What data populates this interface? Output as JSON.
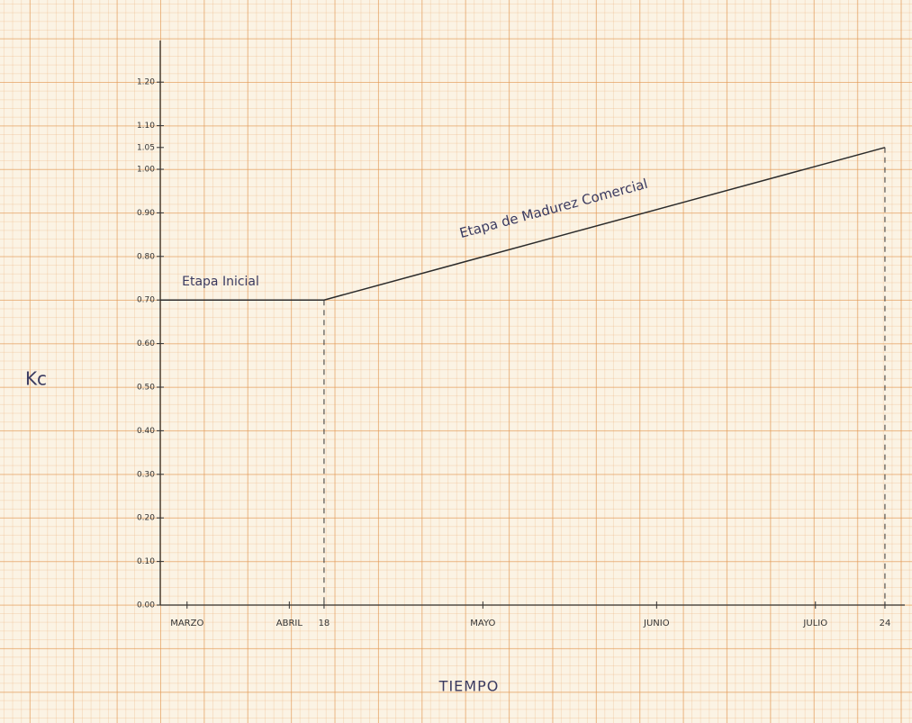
{
  "chart_data": {
    "type": "line",
    "y_label": "Kc",
    "x_label": "TIEMPO",
    "x": [
      0,
      33,
      146
    ],
    "series": [
      {
        "color": "#2b2b2b",
        "values": [
          0.7,
          0.7,
          1.05
        ]
      }
    ],
    "annotations": [
      "Etapa Inicial",
      "Etapa de Madurez Comercial"
    ],
    "xlim": [
      0,
      150
    ],
    "ylim": [
      0,
      1.3
    ],
    "xticks": [
      {
        "value": 5.4,
        "label": "MARZO"
      },
      {
        "value": 26,
        "label": "ABRIL"
      },
      {
        "value": 33,
        "label": "18"
      },
      {
        "value": 65,
        "label": "MAYO"
      },
      {
        "value": 100,
        "label": "JUNIO"
      },
      {
        "value": 132,
        "label": "JULIO"
      },
      {
        "value": 146,
        "label": "24"
      }
    ],
    "yticks": [
      {
        "value": 0,
        "label": "0.00"
      },
      {
        "value": 0.1,
        "label": "0.10"
      },
      {
        "value": 0.2,
        "label": "0.20"
      },
      {
        "value": 0.3,
        "label": "0.30"
      },
      {
        "value": 0.4,
        "label": "0.40"
      },
      {
        "value": 0.5,
        "label": "0.50"
      },
      {
        "value": 0.6,
        "label": "0.60"
      },
      {
        "value": 0.7,
        "label": "0.70"
      },
      {
        "value": 0.8,
        "label": "0.80"
      },
      {
        "value": 0.9,
        "label": "0.90"
      },
      {
        "value": 1,
        "label": "1.00"
      },
      {
        "value": 1.05,
        "label": "1.05"
      },
      {
        "value": 1.1,
        "label": "1.10"
      },
      {
        "value": 1.2,
        "label": "1.20"
      }
    ],
    "drop_lines": true
  }
}
